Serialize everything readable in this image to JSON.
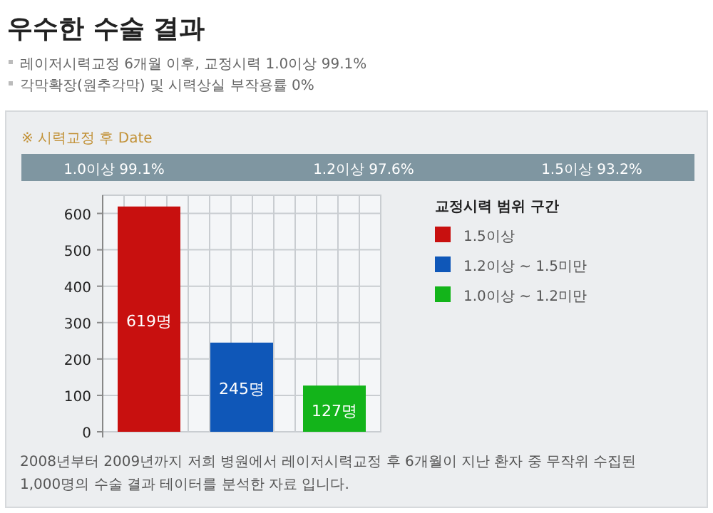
{
  "chart_data": {
    "type": "bar",
    "title": "우수한 수술 결과",
    "subtitle": "레이저시력교정 6개월 이후, 교정시력 1.0이상 99.1%",
    "annotations": [
      "각막확장(원추각막) 및 시력상실 부작용률 0%",
      "※ 시력교정 후 Date",
      "1.0이상 99.1%",
      "1.2이상 97.6%",
      "1.5이상 93.2%",
      "2008년부터 2009년까지 저희 병원에서 레이저시력교정 후 6개월이 지난 환자 중 무작위 수집된 1,000명의 수술 결과 테이터를 분석한 자료 입니다."
    ],
    "categories": [
      null,
      null,
      null
    ],
    "series": [
      {
        "name": "1.5이상",
        "color": "#c8100f",
        "values": [
          619,
          null,
          null
        ],
        "value_labels": [
          "619명",
          null,
          null
        ]
      },
      {
        "name": "1.2이상 ~ 1.5미만",
        "color": "#0f57b8",
        "values": [
          null,
          245,
          null
        ],
        "value_labels": [
          null,
          "245명",
          null
        ]
      },
      {
        "name": "1.0이상 ~ 1.2미만",
        "color": "#13b41a",
        "values": [
          null,
          null,
          127
        ],
        "value_labels": [
          null,
          null,
          "127명"
        ]
      }
    ],
    "legend_title": "교정시력 범위 구간",
    "legend": "right",
    "ylim": [
      0,
      650
    ],
    "yticks": [
      0,
      100,
      200,
      300,
      400,
      500,
      600
    ],
    "grid": true
  }
}
